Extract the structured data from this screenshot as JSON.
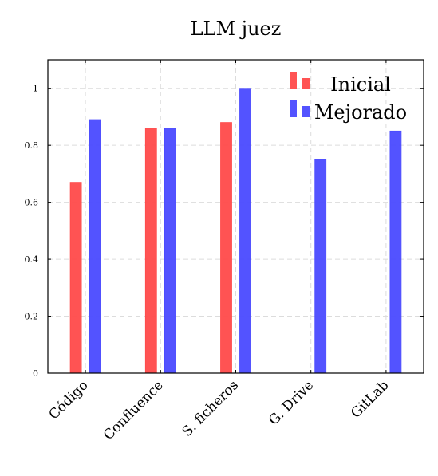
{
  "chart_data": {
    "type": "bar",
    "title": "LLM juez",
    "xlabel": "",
    "ylabel": "",
    "categories": [
      "Código",
      "Confluence",
      "S. ficheros",
      "G. Drive",
      "GitLab"
    ],
    "series": [
      {
        "name": "Inicial",
        "color": "#ff4a4a",
        "values": [
          0.67,
          0.86,
          0.88,
          null,
          null
        ]
      },
      {
        "name": "Mejorado",
        "color": "#4a4aff",
        "values": [
          0.89,
          0.86,
          1.0,
          0.75,
          0.85
        ]
      }
    ],
    "ylim": [
      0,
      1.1
    ],
    "yticks": [
      "0",
      "0.2",
      "0.4",
      "0.6",
      "0.8",
      "1"
    ],
    "ytick_values": [
      0,
      0.2,
      0.4,
      0.6,
      0.8,
      1.0
    ],
    "grid": true,
    "legend_position": "top-right"
  }
}
